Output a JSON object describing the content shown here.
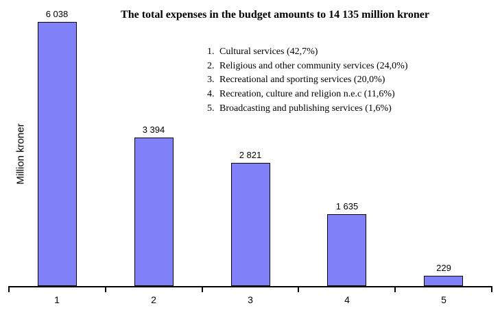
{
  "title": "The total expenses in the budget amounts to 14 135 million kroner",
  "y_axis": {
    "label": "Million kroner"
  },
  "legend": [
    {
      "num": "1.",
      "label": "Cultural services (42,7%)"
    },
    {
      "num": "2.",
      "label": "Religious and other community services (24,0%)"
    },
    {
      "num": "3.",
      "label": "Recreational and sporting services (20,0%)"
    },
    {
      "num": "4.",
      "label": "Recreation, culture and religion n.e.c (11,6%)"
    },
    {
      "num": "5.",
      "label": "Broadcasting and publishing services (1,6%)"
    }
  ],
  "chart_data": {
    "type": "bar",
    "categories": [
      "1",
      "2",
      "3",
      "4",
      "5"
    ],
    "values": [
      6038,
      3394,
      2821,
      1635,
      229
    ],
    "value_labels": [
      "6 038",
      "3 394",
      "2 821",
      "1 635",
      "229"
    ],
    "category_names": [
      "Cultural services",
      "Religious and other community services",
      "Recreational and sporting services",
      "Recreation, culture and religion n.e.c",
      "Broadcasting and publishing services"
    ],
    "percentages": [
      "42,7%",
      "24,0%",
      "20,0%",
      "11,6%",
      "1,6%"
    ],
    "total_label": "14 135",
    "title": "The total expenses in the budget amounts to 14 135 million kroner",
    "xlabel": "",
    "ylabel": "Million kroner",
    "ylim": [
      0,
      6400
    ],
    "grid": false,
    "legend_position": "top-center"
  },
  "colors": {
    "background": "#FFFFFF",
    "bar_fill": "#8080F8",
    "bar_border": "#000000",
    "axis": "#000000",
    "text": "#000000"
  }
}
